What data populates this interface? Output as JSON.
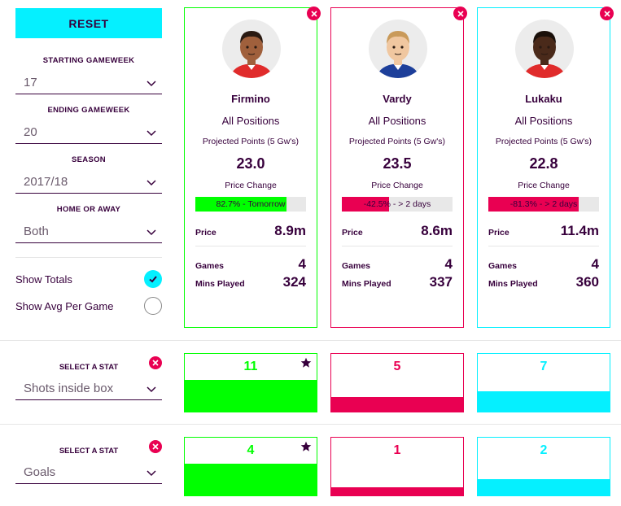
{
  "sidebar": {
    "reset_label": "RESET",
    "starting_gameweek": {
      "label": "STARTING GAMEWEEK",
      "value": "17"
    },
    "ending_gameweek": {
      "label": "ENDING GAMEWEEK",
      "value": "20"
    },
    "season": {
      "label": "SEASON",
      "value": "2017/18"
    },
    "home_or_away": {
      "label": "HOME OR AWAY",
      "value": "Both"
    },
    "show_totals": {
      "label": "Show Totals",
      "checked": true
    },
    "show_avg": {
      "label": "Show Avg Per Game",
      "checked": false
    }
  },
  "players": [
    {
      "name": "Firmino",
      "position": "All Positions",
      "projected_label": "Projected Points (5 Gw's)",
      "projected_points": "23.0",
      "price_change_label": "Price Change",
      "price_change_text": "82.7% - Tomorrow",
      "price_change_pct": 0.827,
      "price_change_color": "#00ff00",
      "price_label": "Price",
      "price": "8.9m",
      "games_label": "Games",
      "games": "4",
      "mins_label": "Mins Played",
      "mins": "324",
      "border_color": "#00ff00",
      "shirt_color": "#e02b2b",
      "skin_color": "#a0603c",
      "hair_color": "#2a1a12"
    },
    {
      "name": "Vardy",
      "position": "All Positions",
      "projected_label": "Projected Points (5 Gw's)",
      "projected_points": "23.5",
      "price_change_label": "Price Change",
      "price_change_text": "-42.5% - > 2 days",
      "price_change_pct": 0.425,
      "price_change_color": "#e90052",
      "price_label": "Price",
      "price": "8.6m",
      "games_label": "Games",
      "games": "4",
      "mins_label": "Mins Played",
      "mins": "337",
      "border_color": "#e90052",
      "shirt_color": "#1d3f9a",
      "skin_color": "#f0c7a0",
      "hair_color": "#c99a5a"
    },
    {
      "name": "Lukaku",
      "position": "All Positions",
      "projected_label": "Projected Points (5 Gw's)",
      "projected_points": "22.8",
      "price_change_label": "Price Change",
      "price_change_text": "-81.3% - > 2 days",
      "price_change_pct": 0.813,
      "price_change_color": "#e90052",
      "price_label": "Price",
      "price": "11.4m",
      "games_label": "Games",
      "games": "4",
      "mins_label": "Mins Played",
      "mins": "360",
      "border_color": "#05f0ff",
      "shirt_color": "#e02b2b",
      "skin_color": "#4a2a1a",
      "hair_color": "#1a100a"
    }
  ],
  "stats": [
    {
      "select_label": "SELECT A STAT",
      "stat_name": "Shots inside box",
      "values": [
        {
          "value": "11",
          "color": "#00ff00",
          "fill": 0.55,
          "best": true
        },
        {
          "value": "5",
          "color": "#e90052",
          "fill": 0.25,
          "best": false
        },
        {
          "value": "7",
          "color": "#05f0ff",
          "fill": 0.35,
          "best": false
        }
      ]
    },
    {
      "select_label": "SELECT A STAT",
      "stat_name": "Goals",
      "values": [
        {
          "value": "4",
          "color": "#00ff00",
          "fill": 0.55,
          "best": true
        },
        {
          "value": "1",
          "color": "#e90052",
          "fill": 0.14,
          "best": false
        },
        {
          "value": "2",
          "color": "#05f0ff",
          "fill": 0.28,
          "best": false
        }
      ]
    }
  ],
  "colors": {
    "primary": "#37003c",
    "accent_cyan": "#05f0ff",
    "accent_pink": "#e90052",
    "accent_green": "#00ff00"
  },
  "icons": [
    "chevron-down-icon",
    "check-icon",
    "close-icon",
    "star-icon"
  ]
}
